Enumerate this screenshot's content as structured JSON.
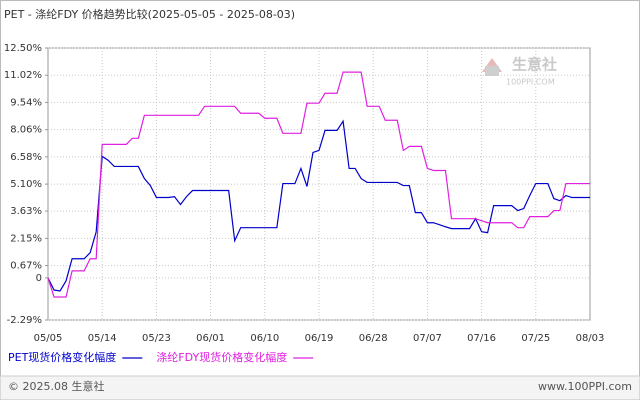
{
  "chart_data": {
    "type": "line",
    "title": "PET - 涤纶FDY 价格趋势比较(2025-05-05 - 2025-08-03)",
    "categories": [
      "05/05",
      null,
      null,
      null,
      null,
      null,
      null,
      null,
      null,
      "05/14",
      null,
      null,
      null,
      null,
      null,
      null,
      null,
      null,
      "05/23",
      null,
      null,
      null,
      null,
      null,
      null,
      null,
      null,
      "06/01",
      null,
      null,
      null,
      null,
      null,
      null,
      null,
      null,
      "06/10",
      null,
      null,
      null,
      null,
      null,
      null,
      null,
      null,
      "06/19",
      null,
      null,
      null,
      null,
      null,
      null,
      null,
      null,
      "06/28",
      null,
      null,
      null,
      null,
      null,
      null,
      null,
      null,
      "07/07",
      null,
      null,
      null,
      null,
      null,
      null,
      null,
      null,
      "07/16",
      null,
      null,
      null,
      null,
      null,
      null,
      null,
      null,
      "07/25",
      null,
      null,
      null,
      null,
      null,
      null,
      null,
      null,
      "08/03"
    ],
    "series": [
      {
        "name": "PET现货价格变化幅度",
        "color": "#0000cc",
        "values": [
          0,
          -0.66,
          -0.71,
          -0.16,
          1.04,
          1.04,
          1.04,
          1.37,
          2.5,
          6.61,
          6.39,
          6.06,
          6.06,
          6.06,
          6.06,
          6.06,
          5.4,
          5.02,
          4.37,
          4.37,
          4.37,
          4.42,
          3.99,
          4.42,
          4.75,
          4.75,
          4.75,
          4.75,
          4.75,
          4.75,
          4.75,
          2.02,
          2.73,
          2.73,
          2.73,
          2.73,
          2.73,
          2.73,
          2.73,
          5.13,
          5.13,
          5.13,
          5.95,
          4.97,
          6.82,
          6.93,
          8.02,
          8.02,
          8.02,
          8.52,
          5.95,
          5.95,
          5.4,
          5.19,
          5.19,
          5.19,
          5.19,
          5.19,
          5.19,
          5.02,
          5.02,
          3.55,
          3.55,
          3.0,
          3.0,
          2.89,
          2.78,
          2.68,
          2.68,
          2.68,
          2.68,
          3.22,
          2.51,
          2.46,
          3.93,
          3.93,
          3.93,
          3.93,
          3.66,
          3.77,
          4.48,
          5.13,
          5.13,
          5.13,
          4.31,
          4.2,
          4.48,
          4.37,
          4.37,
          4.37,
          4.37
        ]
      },
      {
        "name": "涤纶FDY现货价格变化幅度",
        "color": "#e020e0",
        "values": [
          0,
          -1.04,
          -1.04,
          -1.04,
          0.38,
          0.38,
          0.38,
          1.04,
          1.04,
          7.26,
          7.26,
          7.26,
          7.26,
          7.26,
          7.59,
          7.59,
          8.84,
          8.84,
          8.84,
          8.84,
          8.84,
          8.84,
          8.84,
          8.84,
          8.84,
          8.84,
          9.33,
          9.33,
          9.33,
          9.33,
          9.33,
          9.33,
          8.95,
          8.95,
          8.95,
          8.95,
          8.68,
          8.68,
          8.68,
          7.86,
          7.86,
          7.86,
          7.86,
          9.5,
          9.5,
          9.5,
          10.04,
          10.04,
          10.04,
          11.19,
          11.19,
          11.19,
          11.19,
          9.33,
          9.33,
          9.33,
          8.57,
          8.57,
          8.57,
          6.93,
          7.15,
          7.15,
          7.15,
          5.95,
          5.84,
          5.84,
          5.84,
          3.22,
          3.22,
          3.22,
          3.22,
          3.22,
          3.11,
          3.0,
          3.0,
          3.0,
          3.0,
          3.0,
          2.73,
          2.73,
          3.33,
          3.33,
          3.33,
          3.33,
          3.66,
          3.66,
          5.13,
          5.13,
          5.13,
          5.13,
          5.13
        ]
      }
    ],
    "ylim": [
      -2.29,
      12.5
    ],
    "yticks": [
      {
        "value": 12.5,
        "label": "12.50%"
      },
      {
        "value": 11.02,
        "label": "11.02%"
      },
      {
        "value": 9.54,
        "label": "9.54%"
      },
      {
        "value": 8.06,
        "label": "8.06%"
      },
      {
        "value": 6.58,
        "label": "6.58%"
      },
      {
        "value": 5.1,
        "label": "5.10%"
      },
      {
        "value": 3.63,
        "label": "3.63%"
      },
      {
        "value": 2.15,
        "label": "2.15%"
      },
      {
        "value": 0.67,
        "label": "0.67%"
      },
      0,
      {
        "value": -2.29,
        "label": "-2.29%"
      }
    ],
    "grid": true
  },
  "watermark": {
    "name": "生意社",
    "site": "100PPI.COM"
  },
  "footer": {
    "left": "© 2025.08 生意社",
    "right": "www.100PPI.com"
  }
}
